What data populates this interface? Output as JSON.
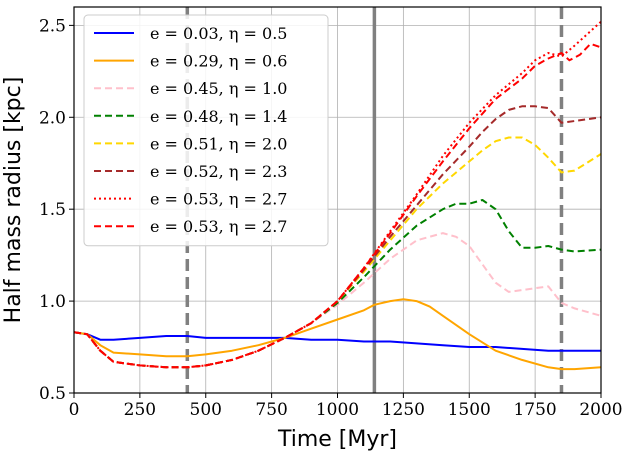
{
  "chart_data": {
    "type": "line",
    "title": "",
    "xlabel": "Time [Myr]",
    "ylabel": "Half mass radius [kpc]",
    "xlim": [
      0,
      2000
    ],
    "ylim": [
      0.5,
      2.6
    ],
    "xticks": [
      "0",
      "250",
      "500",
      "750",
      "1000",
      "1250",
      "1500",
      "1750",
      "2000"
    ],
    "yticks": [
      "0.5",
      "1.0",
      "1.5",
      "2.0",
      "2.5"
    ],
    "grid": true,
    "legend_position": "top-left",
    "vlines": [
      {
        "x": 430,
        "style": "dashed",
        "color": "#808080"
      },
      {
        "x": 1140,
        "style": "solid",
        "color": "#808080"
      },
      {
        "x": 1850,
        "style": "dashed",
        "color": "#808080"
      }
    ],
    "series": [
      {
        "name": "e = 0.03, η = 0.5",
        "color": "#0000ff",
        "dash": "solid",
        "x": [
          0,
          50,
          100,
          150,
          250,
          350,
          430,
          500,
          600,
          700,
          800,
          900,
          1000,
          1100,
          1140,
          1200,
          1300,
          1400,
          1500,
          1600,
          1700,
          1800,
          1850,
          1900,
          2000
        ],
        "y": [
          0.83,
          0.82,
          0.79,
          0.79,
          0.8,
          0.81,
          0.81,
          0.8,
          0.8,
          0.8,
          0.8,
          0.79,
          0.79,
          0.78,
          0.78,
          0.78,
          0.77,
          0.76,
          0.75,
          0.75,
          0.74,
          0.73,
          0.73,
          0.73,
          0.73
        ]
      },
      {
        "name": "e = 0.29, η = 0.6",
        "color": "#ffa500",
        "dash": "solid",
        "x": [
          0,
          50,
          100,
          150,
          250,
          350,
          430,
          500,
          600,
          700,
          800,
          900,
          1000,
          1100,
          1140,
          1200,
          1250,
          1300,
          1350,
          1400,
          1500,
          1600,
          1700,
          1800,
          1850,
          1900,
          2000
        ],
        "y": [
          0.83,
          0.82,
          0.76,
          0.72,
          0.71,
          0.7,
          0.7,
          0.71,
          0.73,
          0.76,
          0.8,
          0.85,
          0.9,
          0.95,
          0.98,
          1.0,
          1.01,
          1.0,
          0.97,
          0.92,
          0.82,
          0.73,
          0.68,
          0.64,
          0.63,
          0.63,
          0.64
        ]
      },
      {
        "name": "e = 0.45, η = 1.0",
        "color": "#ffc0cb",
        "dash": "dashed",
        "x": [
          0,
          50,
          100,
          150,
          250,
          350,
          430,
          500,
          600,
          700,
          800,
          900,
          1000,
          1100,
          1200,
          1300,
          1400,
          1450,
          1500,
          1550,
          1600,
          1650,
          1700,
          1750,
          1800,
          1850,
          1900,
          2000
        ],
        "y": [
          0.83,
          0.82,
          0.73,
          0.67,
          0.65,
          0.64,
          0.64,
          0.65,
          0.68,
          0.73,
          0.8,
          0.88,
          0.98,
          1.1,
          1.23,
          1.33,
          1.37,
          1.35,
          1.3,
          1.2,
          1.1,
          1.05,
          1.06,
          1.07,
          1.08,
          0.99,
          0.96,
          0.92
        ]
      },
      {
        "name": "e = 0.48, η = 1.4",
        "color": "#008000",
        "dash": "dashed",
        "x": [
          0,
          50,
          100,
          150,
          250,
          350,
          430,
          500,
          600,
          700,
          800,
          900,
          1000,
          1100,
          1200,
          1300,
          1400,
          1450,
          1500,
          1550,
          1600,
          1650,
          1700,
          1750,
          1800,
          1850,
          1900,
          2000
        ],
        "y": [
          0.83,
          0.82,
          0.73,
          0.67,
          0.65,
          0.64,
          0.64,
          0.65,
          0.68,
          0.73,
          0.8,
          0.88,
          0.99,
          1.13,
          1.28,
          1.41,
          1.5,
          1.53,
          1.53,
          1.55,
          1.5,
          1.38,
          1.29,
          1.29,
          1.3,
          1.28,
          1.27,
          1.28
        ]
      },
      {
        "name": "e = 0.51, η = 2.0",
        "color": "#ffd700",
        "dash": "dashed",
        "x": [
          0,
          50,
          100,
          150,
          250,
          350,
          430,
          500,
          600,
          700,
          800,
          900,
          1000,
          1100,
          1200,
          1300,
          1400,
          1500,
          1550,
          1600,
          1650,
          1700,
          1750,
          1800,
          1850,
          1900,
          2000
        ],
        "y": [
          0.83,
          0.82,
          0.73,
          0.67,
          0.65,
          0.64,
          0.64,
          0.65,
          0.68,
          0.73,
          0.8,
          0.88,
          1.0,
          1.16,
          1.33,
          1.5,
          1.64,
          1.76,
          1.82,
          1.87,
          1.89,
          1.89,
          1.85,
          1.78,
          1.7,
          1.71,
          1.8
        ]
      },
      {
        "name": "e = 0.52, η = 2.3",
        "color": "#a52a2a",
        "dash": "dashed",
        "x": [
          0,
          50,
          100,
          150,
          250,
          350,
          430,
          500,
          600,
          700,
          800,
          900,
          1000,
          1100,
          1200,
          1300,
          1400,
          1500,
          1550,
          1600,
          1650,
          1700,
          1750,
          1800,
          1850,
          1900,
          2000
        ],
        "y": [
          0.83,
          0.82,
          0.73,
          0.67,
          0.65,
          0.64,
          0.64,
          0.65,
          0.68,
          0.73,
          0.8,
          0.88,
          1.0,
          1.17,
          1.35,
          1.52,
          1.69,
          1.84,
          1.92,
          1.99,
          2.04,
          2.06,
          2.06,
          2.05,
          1.97,
          1.98,
          2.0
        ]
      },
      {
        "name": "e = 0.53, η = 2.7",
        "color": "#ff0000",
        "dash": "dotted",
        "x": [
          0,
          50,
          100,
          150,
          250,
          350,
          430,
          500,
          600,
          700,
          800,
          900,
          1000,
          1100,
          1200,
          1300,
          1400,
          1500,
          1600,
          1700,
          1750,
          1800,
          1850,
          1900,
          2000
        ],
        "y": [
          0.83,
          0.82,
          0.73,
          0.67,
          0.65,
          0.64,
          0.64,
          0.65,
          0.68,
          0.73,
          0.8,
          0.88,
          1.0,
          1.18,
          1.38,
          1.58,
          1.79,
          1.97,
          2.12,
          2.24,
          2.31,
          2.35,
          2.33,
          2.39,
          2.52
        ]
      },
      {
        "name": "e = 0.53, η = 2.7",
        "color": "#ff0000",
        "dash": "dashed",
        "x": [
          0,
          50,
          100,
          150,
          250,
          350,
          430,
          500,
          600,
          700,
          800,
          900,
          1000,
          1100,
          1200,
          1300,
          1400,
          1500,
          1600,
          1700,
          1750,
          1800,
          1850,
          1880,
          1920,
          1960,
          2000
        ],
        "y": [
          0.83,
          0.82,
          0.73,
          0.67,
          0.65,
          0.64,
          0.64,
          0.65,
          0.68,
          0.73,
          0.8,
          0.88,
          1.0,
          1.18,
          1.37,
          1.57,
          1.76,
          1.94,
          2.1,
          2.21,
          2.28,
          2.32,
          2.35,
          2.31,
          2.34,
          2.4,
          2.38
        ]
      }
    ]
  }
}
